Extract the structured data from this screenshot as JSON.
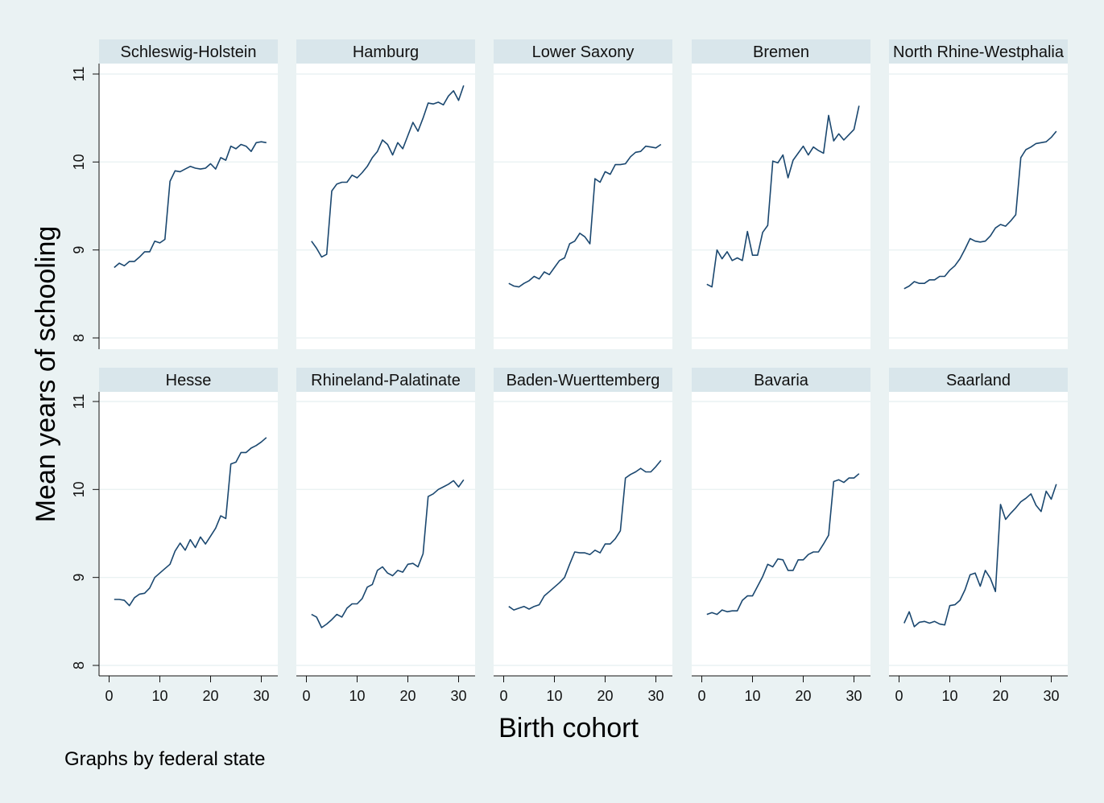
{
  "chart_data": {
    "type": "line",
    "layout": "small-multiples",
    "xlabel": "Birth cohort",
    "ylabel": "Mean years of schooling",
    "note": "Graphs by federal state",
    "xlim": [
      0,
      33
    ],
    "ylim": [
      8,
      11
    ],
    "xticks": [
      0,
      10,
      20,
      30
    ],
    "yticks": [
      8,
      9,
      10,
      11
    ],
    "grid": true,
    "line_color": "#1a476f",
    "x": [
      1,
      2,
      3,
      4,
      5,
      6,
      7,
      8,
      9,
      10,
      11,
      12,
      13,
      14,
      15,
      16,
      17,
      18,
      19,
      20,
      21,
      22,
      23,
      24,
      25,
      26,
      27,
      28,
      29,
      30,
      31
    ],
    "series": [
      {
        "name": "Schleswig-Holstein",
        "values": [
          8.8,
          8.85,
          8.82,
          8.87,
          8.87,
          8.92,
          8.98,
          8.98,
          9.1,
          9.08,
          9.12,
          9.78,
          9.9,
          9.89,
          9.92,
          9.95,
          9.93,
          9.92,
          9.93,
          9.98,
          9.92,
          10.05,
          10.02,
          10.18,
          10.15,
          10.2,
          10.18,
          10.12,
          10.22,
          10.23,
          10.22
        ]
      },
      {
        "name": "Hamburg",
        "values": [
          9.1,
          9.02,
          8.92,
          8.95,
          9.67,
          9.75,
          9.77,
          9.77,
          9.85,
          9.82,
          9.88,
          9.95,
          10.05,
          10.12,
          10.25,
          10.2,
          10.08,
          10.22,
          10.15,
          10.3,
          10.45,
          10.35,
          10.5,
          10.67,
          10.66,
          10.68,
          10.65,
          10.75,
          10.81,
          10.7,
          10.87
        ]
      },
      {
        "name": "Lower Saxony",
        "values": [
          8.62,
          8.59,
          8.58,
          8.62,
          8.65,
          8.7,
          8.67,
          8.75,
          8.72,
          8.8,
          8.88,
          8.91,
          9.07,
          9.1,
          9.19,
          9.15,
          9.07,
          9.81,
          9.77,
          9.89,
          9.86,
          9.97,
          9.97,
          9.98,
          10.06,
          10.11,
          10.12,
          10.18,
          10.17,
          10.16,
          10.2
        ]
      },
      {
        "name": "Bremen",
        "values": [
          8.61,
          8.58,
          9.0,
          8.9,
          8.98,
          8.88,
          8.91,
          8.88,
          9.21,
          8.94,
          8.94,
          9.2,
          9.28,
          10.01,
          9.99,
          10.08,
          9.82,
          10.02,
          10.1,
          10.18,
          10.08,
          10.17,
          10.13,
          10.1,
          10.53,
          10.24,
          10.32,
          10.25,
          10.31,
          10.37,
          10.64
        ]
      },
      {
        "name": "North Rhine-Westphalia",
        "values": [
          8.56,
          8.59,
          8.64,
          8.62,
          8.62,
          8.66,
          8.66,
          8.7,
          8.7,
          8.77,
          8.82,
          8.9,
          9.01,
          9.13,
          9.1,
          9.09,
          9.1,
          9.16,
          9.25,
          9.29,
          9.27,
          9.33,
          9.4,
          10.05,
          10.14,
          10.17,
          10.21,
          10.22,
          10.23,
          10.28,
          10.35
        ]
      },
      {
        "name": "Hesse",
        "values": [
          8.75,
          8.75,
          8.74,
          8.68,
          8.77,
          8.81,
          8.82,
          8.88,
          9.0,
          9.05,
          9.1,
          9.15,
          9.3,
          9.39,
          9.31,
          9.43,
          9.34,
          9.46,
          9.38,
          9.47,
          9.56,
          9.7,
          9.67,
          10.29,
          10.31,
          10.42,
          10.42,
          10.47,
          10.5,
          10.54,
          10.59
        ]
      },
      {
        "name": "Rhineland-Palatinate",
        "values": [
          8.58,
          8.55,
          8.43,
          8.47,
          8.52,
          8.58,
          8.55,
          8.65,
          8.7,
          8.7,
          8.76,
          8.89,
          8.92,
          9.08,
          9.12,
          9.05,
          9.02,
          9.08,
          9.06,
          9.15,
          9.16,
          9.12,
          9.27,
          9.92,
          9.95,
          10.0,
          10.03,
          10.06,
          10.1,
          10.03,
          10.11
        ]
      },
      {
        "name": "Baden-Wuerttemberg",
        "values": [
          8.67,
          8.63,
          8.65,
          8.67,
          8.64,
          8.67,
          8.69,
          8.79,
          8.84,
          8.89,
          8.94,
          9.0,
          9.15,
          9.29,
          9.28,
          9.28,
          9.26,
          9.31,
          9.28,
          9.38,
          9.38,
          9.44,
          9.53,
          10.13,
          10.17,
          10.2,
          10.24,
          10.2,
          10.2,
          10.26,
          10.33
        ]
      },
      {
        "name": "Bavaria",
        "values": [
          8.58,
          8.6,
          8.58,
          8.63,
          8.61,
          8.62,
          8.62,
          8.74,
          8.79,
          8.79,
          8.9,
          9.01,
          9.15,
          9.12,
          9.21,
          9.2,
          9.08,
          9.08,
          9.2,
          9.2,
          9.26,
          9.29,
          9.29,
          9.38,
          9.48,
          10.09,
          10.11,
          10.08,
          10.13,
          10.13,
          10.18
        ]
      },
      {
        "name": "Saarland",
        "values": [
          8.48,
          8.61,
          8.44,
          8.49,
          8.5,
          8.48,
          8.5,
          8.47,
          8.46,
          8.68,
          8.69,
          8.74,
          8.86,
          9.03,
          9.05,
          8.9,
          9.08,
          8.99,
          8.84,
          9.83,
          9.66,
          9.73,
          9.79,
          9.86,
          9.9,
          9.95,
          9.82,
          9.75,
          9.98,
          9.89,
          10.06
        ]
      }
    ]
  }
}
